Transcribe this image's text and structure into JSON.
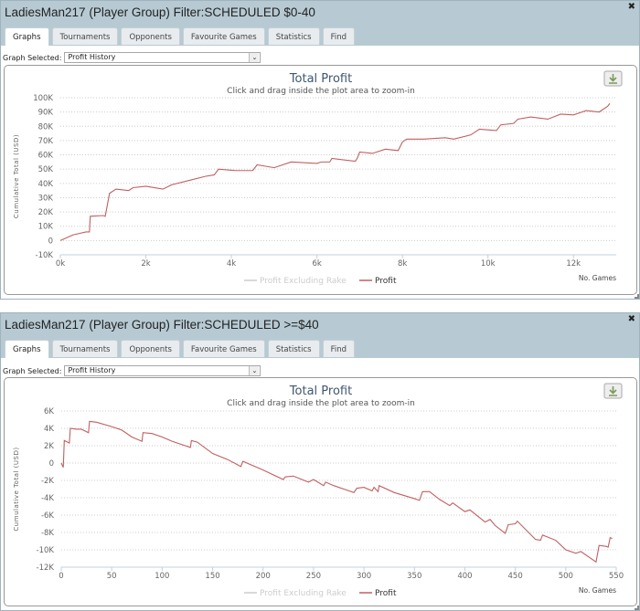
{
  "panels": [
    {
      "title": "LadiesMan217 (Player Group) Filter:SCHEDULED $0-40",
      "tabs": [
        "Graphs",
        "Tournaments",
        "Opponents",
        "Favourite Games",
        "Statistics",
        "Find"
      ],
      "active_tab": "Graphs",
      "graph_selected_label": "Graph Selected:",
      "graph_selected_value": "Profit History"
    },
    {
      "title": "LadiesMan217 (Player Group) Filter:SCHEDULED >=$40",
      "tabs": [
        "Graphs",
        "Tournaments",
        "Opponents",
        "Favourite Games",
        "Statistics",
        "Find"
      ],
      "active_tab": "Graphs",
      "graph_selected_label": "Graph Selected:",
      "graph_selected_value": "Profit History"
    }
  ],
  "icons": {
    "close": "close-icon",
    "download": "download-icon",
    "dropdown": "chevron-down-icon"
  },
  "colors": {
    "profit": "#c06060",
    "profit_ex_rake": "#cccccc",
    "header": "#b7cad3"
  },
  "chart_data": [
    {
      "type": "line",
      "title": "Total Profit",
      "subtitle": "Click and drag inside the plot area to zoom-in",
      "xlabel": "No. Games",
      "ylabel": "Cumulative Total (USD)",
      "xlim": [
        0,
        13000
      ],
      "ylim": [
        -10000,
        100000
      ],
      "xticks": [
        0,
        2000,
        4000,
        6000,
        8000,
        10000,
        12000
      ],
      "xtick_labels": [
        "0k",
        "2k",
        "4k",
        "6k",
        "8k",
        "10k",
        "12k"
      ],
      "yticks": [
        -10000,
        0,
        10000,
        20000,
        30000,
        40000,
        50000,
        60000,
        70000,
        80000,
        90000,
        100000
      ],
      "ytick_labels": [
        "-10K",
        "0",
        "10K",
        "20K",
        "30K",
        "40K",
        "50K",
        "60K",
        "70K",
        "80K",
        "90K",
        "100K"
      ],
      "legend": [
        "Profit Excluding Rake",
        "Profit"
      ],
      "legend_placement": "bottom-center",
      "series": [
        {
          "name": "Profit",
          "x": [
            0,
            300,
            600,
            680,
            700,
            1000,
            1050,
            1100,
            1150,
            1300,
            1600,
            1700,
            2000,
            2400,
            2600,
            3000,
            3400,
            3600,
            3700,
            4100,
            4500,
            4600,
            5000,
            5400,
            6000,
            6100,
            6300,
            6350,
            6900,
            6950,
            7000,
            7300,
            7600,
            7900,
            8000,
            8100,
            8500,
            9000,
            9200,
            9600,
            9800,
            10200,
            10300,
            10600,
            10700,
            11000,
            11400,
            11700,
            12000,
            12300,
            12600,
            12800,
            12850
          ],
          "y": [
            0,
            4000,
            6000,
            6000,
            17000,
            17500,
            17000,
            25000,
            33000,
            36000,
            35000,
            37000,
            38000,
            36000,
            39000,
            42000,
            45000,
            46000,
            50000,
            49000,
            49000,
            53000,
            51000,
            55000,
            54000,
            55000,
            55000,
            57500,
            55500,
            58000,
            62000,
            61000,
            64000,
            63000,
            69000,
            71000,
            71000,
            72000,
            71000,
            74000,
            78000,
            77000,
            81000,
            82000,
            85000,
            86500,
            85000,
            88500,
            88000,
            91000,
            90000,
            94000,
            96000
          ]
        }
      ]
    },
    {
      "type": "line",
      "title": "Total Profit",
      "subtitle": "Click and drag inside the plot area to zoom-in",
      "xlabel": "No. Games",
      "ylabel": "Cumulative Total (USD)",
      "xlim": [
        0,
        550
      ],
      "ylim": [
        -12000,
        6000
      ],
      "xticks": [
        0,
        50,
        100,
        150,
        200,
        250,
        300,
        350,
        400,
        450,
        500,
        550
      ],
      "xtick_labels": [
        "0",
        "50",
        "100",
        "150",
        "200",
        "250",
        "300",
        "350",
        "400",
        "450",
        "500",
        "550"
      ],
      "yticks": [
        -12000,
        -10000,
        -8000,
        -6000,
        -4000,
        -2000,
        0,
        2000,
        4000,
        6000
      ],
      "ytick_labels": [
        "-12K",
        "-10K",
        "-8K",
        "-6K",
        "-4K",
        "-2K",
        "0",
        "2K",
        "4K",
        "6K"
      ],
      "legend": [
        "Profit Excluding Rake",
        "Profit"
      ],
      "legend_placement": "bottom-center",
      "series": [
        {
          "name": "Profit",
          "x": [
            0,
            2,
            3,
            8,
            9,
            15,
            20,
            27,
            28,
            35,
            50,
            60,
            70,
            80,
            81,
            90,
            100,
            110,
            128,
            129,
            135,
            150,
            165,
            178,
            180,
            200,
            220,
            222,
            230,
            245,
            250,
            260,
            262,
            270,
            290,
            293,
            300,
            308,
            310,
            314,
            315,
            330,
            350,
            355,
            358,
            365,
            375,
            385,
            388,
            400,
            405,
            420,
            425,
            430,
            440,
            443,
            450,
            452,
            470,
            475,
            477,
            490,
            500,
            510,
            515,
            530,
            533,
            540,
            542,
            544,
            546
          ],
          "y": [
            0,
            -500,
            2600,
            2300,
            4000,
            3900,
            3900,
            3500,
            4800,
            4700,
            4200,
            3800,
            3000,
            2500,
            3500,
            3400,
            3000,
            2500,
            1800,
            2600,
            2400,
            1100,
            400,
            -400,
            200,
            -800,
            -1900,
            -1600,
            -1500,
            -2200,
            -1900,
            -2600,
            -2200,
            -2600,
            -3400,
            -2900,
            -2800,
            -3200,
            -2800,
            -3300,
            -2600,
            -3400,
            -4100,
            -4300,
            -3300,
            -3300,
            -4200,
            -4900,
            -4600,
            -5600,
            -5400,
            -6800,
            -6500,
            -7200,
            -8100,
            -7100,
            -7000,
            -6700,
            -8800,
            -8900,
            -8300,
            -8900,
            -10000,
            -10400,
            -10200,
            -11400,
            -9500,
            -9600,
            -9700,
            -8600,
            -8700
          ]
        }
      ]
    }
  ]
}
